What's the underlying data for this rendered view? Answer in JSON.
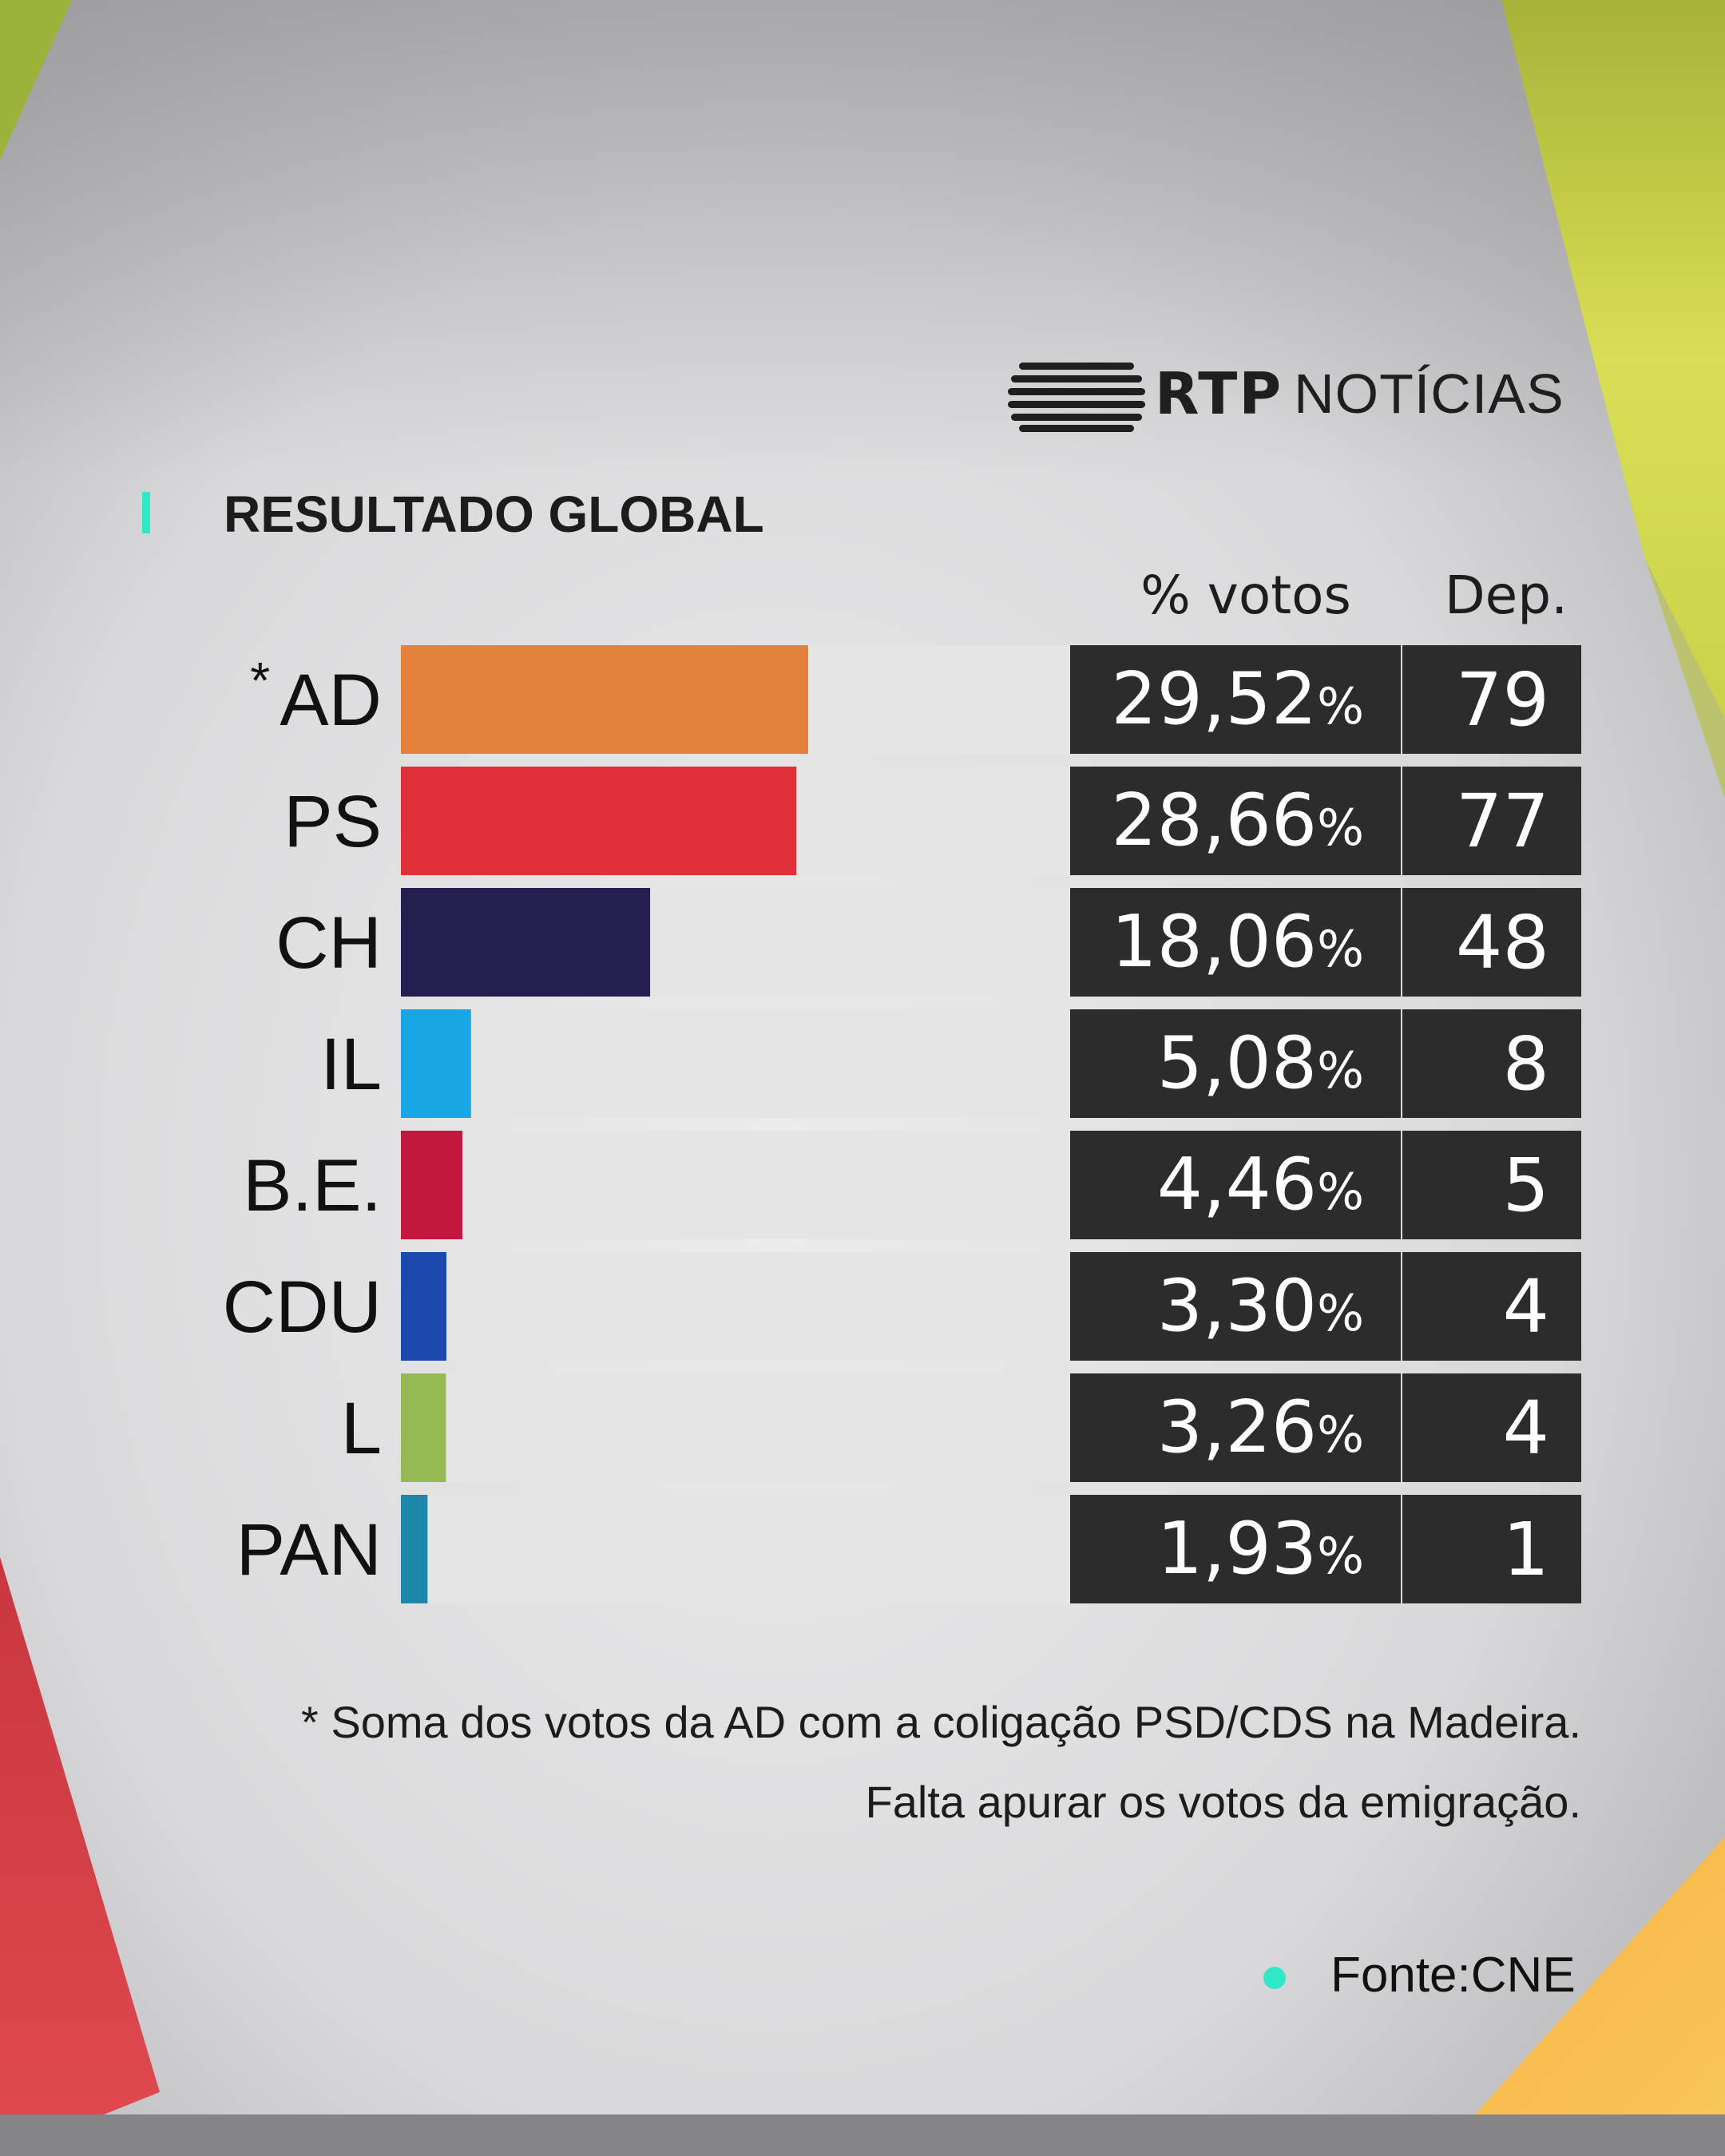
{
  "brand": {
    "rtp": "RTP",
    "noticias": "NOTÍCIAS"
  },
  "title": "RESULTADO GLOBAL",
  "columns": {
    "votes": "% votos",
    "deputies": "Dep."
  },
  "chart_data": {
    "type": "bar",
    "orientation": "horizontal",
    "categories": [
      "AD",
      "PS",
      "CH",
      "IL",
      "B.E.",
      "CDU",
      "L",
      "PAN"
    ],
    "asterisk_category": "AD",
    "asterisk": "*",
    "series": [
      {
        "values": [
          29.52,
          28.66,
          18.06,
          5.08,
          4.46,
          3.3,
          3.26,
          1.93
        ]
      }
    ],
    "value_labels": [
      "29,52",
      "28,66",
      "18,06",
      "5,08",
      "4,46",
      "3,30",
      "3,26",
      "1,93"
    ],
    "value_unit": "%",
    "deputies": [
      "79",
      "77",
      "48",
      "8",
      "5",
      "4",
      "4",
      "1"
    ],
    "colors": [
      "#e2803c",
      "#e0313a",
      "#231f51",
      "#1aa6e4",
      "#c2183f",
      "#1d48ad",
      "#96b954",
      "#1e86a8"
    ],
    "xlim": [
      0,
      48.5
    ],
    "grid": false,
    "legend": "none"
  },
  "notes": {
    "line1": "* Soma dos votos da AD com a coligação PSD/CDS na Madeira.",
    "line2": "Falta apurar os votos da emigração."
  },
  "source": "Fonte:CNE"
}
